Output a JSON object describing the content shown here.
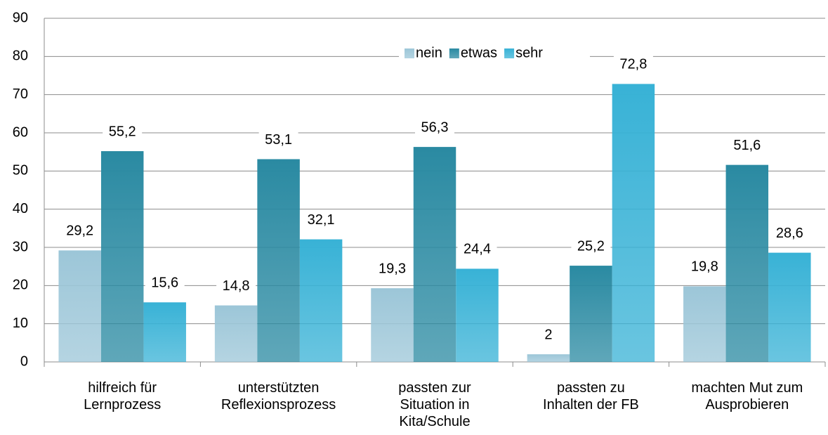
{
  "chart_data": {
    "type": "bar",
    "categories": [
      "hilfreich für\nLernprozess",
      "unterstützten\nReflexionsprozess",
      "passten zur\nSituation in\nKita/Schule",
      "passten zu\nInhalten der FB",
      "machten Mut zum\nAusprobieren"
    ],
    "series": [
      {
        "name": "nein",
        "color": "#9cc6d8",
        "values": [
          29.2,
          14.8,
          19.3,
          2,
          19.8
        ],
        "value_labels": [
          "29,2",
          "14,8",
          "19,3",
          "2",
          "19,8"
        ]
      },
      {
        "name": "etwas",
        "color": "#2a8aa2",
        "values": [
          55.2,
          53.1,
          56.3,
          25.2,
          51.6
        ],
        "value_labels": [
          "55,2",
          "53,1",
          "56,3",
          "25,2",
          "51,6"
        ]
      },
      {
        "name": "sehr",
        "color": "#38b2d6",
        "values": [
          15.6,
          32.1,
          24.4,
          72.8,
          28.6
        ],
        "value_labels": [
          "15,6",
          "32,1",
          "24,4",
          "72,8",
          "28,6"
        ]
      }
    ],
    "ylim": [
      0,
      90
    ],
    "yticks": [
      0,
      10,
      20,
      30,
      40,
      50,
      60,
      70,
      80,
      90
    ],
    "grid": true,
    "legend": "top"
  }
}
